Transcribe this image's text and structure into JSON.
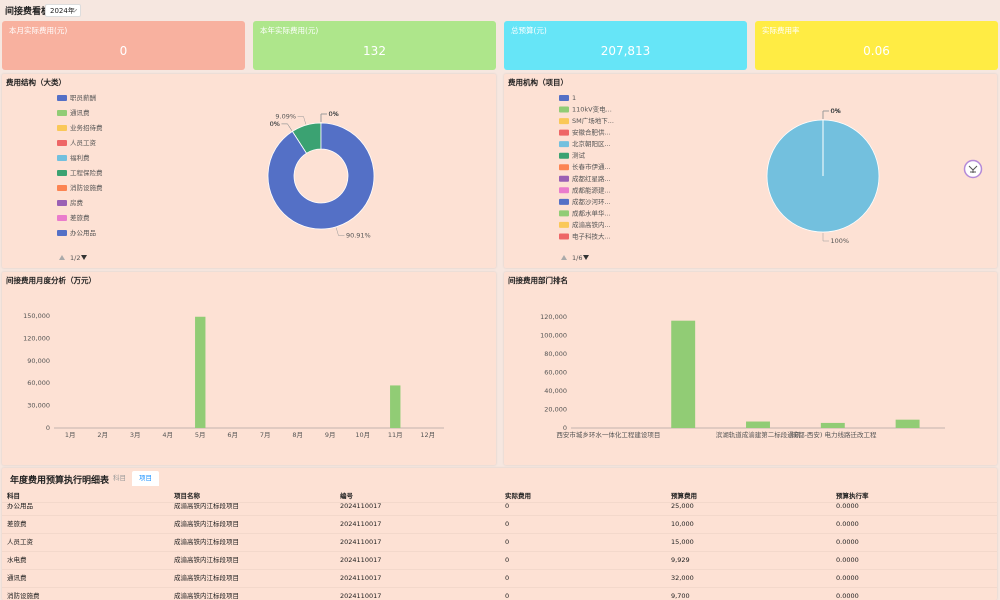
{
  "header": {
    "title": "间接费看板",
    "year": "2024年"
  },
  "kpis": [
    {
      "label": "本月实际费用(元)",
      "value": "0"
    },
    {
      "label": "本年实际费用(元)",
      "value": "132"
    },
    {
      "label": "总预算(元)",
      "value": "207,813"
    },
    {
      "label": "实际费用率",
      "value": "0.06"
    }
  ],
  "chart_data": [
    {
      "type": "pie",
      "title": "费用结构（大类）",
      "donut": true,
      "categories": [
        "职员薪酬",
        "通讯费",
        "业务招待费",
        "人员工资",
        "福利费",
        "工程保险费",
        "消防设施费",
        "房费",
        "差旅费",
        "办公用品"
      ],
      "values": [
        0,
        0,
        0,
        0,
        0,
        9.09,
        0,
        0,
        0,
        90.91
      ],
      "value_labels": [
        "0%",
        "0%",
        "0%",
        "0%",
        "0%",
        "9.09%",
        "0%",
        "0%",
        "0%",
        "90.91%"
      ],
      "colors": [
        "#5470c6",
        "#91cc75",
        "#fac858",
        "#ee6666",
        "#73c0de",
        "#3ba272",
        "#fc8452",
        "#9a60b4",
        "#ea7ccc",
        "#5470c6"
      ],
      "legend_page": "1/2"
    },
    {
      "type": "pie",
      "title": "费用机构（项目）",
      "donut": false,
      "categories": [
        "1",
        "110kV变电...",
        "SM广场地下...",
        "安徽合肥供...",
        "北京朝阳区...",
        "测试",
        "长春市伊通...",
        "成都红星路...",
        "成都能源建...",
        "成都沙河环...",
        "成都水单华...",
        "成渝高铁内...",
        "电子科技大..."
      ],
      "values": [
        0,
        0,
        0,
        0,
        100,
        0,
        0,
        0,
        0,
        0,
        0,
        0,
        0
      ],
      "value_labels": [
        "0%",
        "0%",
        "0%",
        "0%",
        "100%",
        "0%",
        "0%",
        "0%",
        "0%",
        "0%",
        "0%",
        "0%",
        "0%"
      ],
      "colors": [
        "#5470c6",
        "#91cc75",
        "#fac858",
        "#ee6666",
        "#73c0de",
        "#3ba272",
        "#fc8452",
        "#9a60b4",
        "#ea7ccc",
        "#5470c6",
        "#91cc75",
        "#fac858",
        "#ee6666"
      ],
      "legend_page": "1/6"
    },
    {
      "type": "bar",
      "title": "间接费用月度分析（万元）",
      "color": "#91cc75",
      "categories": [
        "1月",
        "2月",
        "3月",
        "4月",
        "5月",
        "6月",
        "7月",
        "8月",
        "9月",
        "10月",
        "11月",
        "12月"
      ],
      "values": [
        0,
        0,
        0,
        0,
        149000,
        0,
        0,
        0,
        0,
        0,
        57000,
        0
      ],
      "ylim": [
        0,
        150000
      ],
      "yticks": [
        0,
        {
          "value": 30000,
          "label": "30,000"
        },
        {
          "value": 60000,
          "label": "60,000"
        },
        {
          "value": 90000,
          "label": "90,000"
        },
        {
          "value": 120000,
          "label": "120,000"
        },
        {
          "value": 150000,
          "label": "150,000"
        }
      ]
    },
    {
      "type": "bar",
      "title": "间接费用部门排名",
      "color": "#91cc75",
      "categories": [
        "西安市城乡环水一体化工程建设项目",
        null,
        "滨湖轨道成渝建第二标段通讯",
        "(成都-西安) 电力线路迁改工程",
        null
      ],
      "values": [
        0,
        116000,
        7000,
        5500,
        9000
      ],
      "ylim": [
        0,
        120000
      ],
      "yticks": [
        0,
        {
          "value": 20000,
          "label": "20,000"
        },
        {
          "value": 40000,
          "label": "40,000"
        },
        {
          "value": 60000,
          "label": "60,000"
        },
        {
          "value": 80000,
          "label": "80,000"
        },
        {
          "value": 100000,
          "label": "100,000"
        },
        {
          "value": 120000,
          "label": "120,000"
        }
      ]
    }
  ],
  "table": {
    "title": "年度费用预算执行明细表",
    "tabs": [
      "科目",
      "项目"
    ],
    "columns": [
      "科目",
      "项目名称",
      "编号",
      "实际费用",
      "预算费用",
      "预算执行率"
    ],
    "rows": [
      [
        "办公用品",
        "成渝高铁内江标段项目",
        "2024110017",
        "0",
        "25,000",
        "0.0000"
      ],
      [
        "差旅费",
        "成渝高铁内江标段项目",
        "2024110017",
        "0",
        "10,000",
        "0.0000"
      ],
      [
        "人员工资",
        "成渝高铁内江标段项目",
        "2024110017",
        "0",
        "15,000",
        "0.0000"
      ],
      [
        "水电费",
        "成渝高铁内江标段项目",
        "2024110017",
        "0",
        "9,929",
        "0.0000"
      ],
      [
        "通讯费",
        "成渝高铁内江标段项目",
        "2024110017",
        "0",
        "32,000",
        "0.0000"
      ],
      [
        "消防设施费",
        "成渝高铁内江标段项目",
        "2024110017",
        "0",
        "9,700",
        "0.0000"
      ]
    ]
  }
}
